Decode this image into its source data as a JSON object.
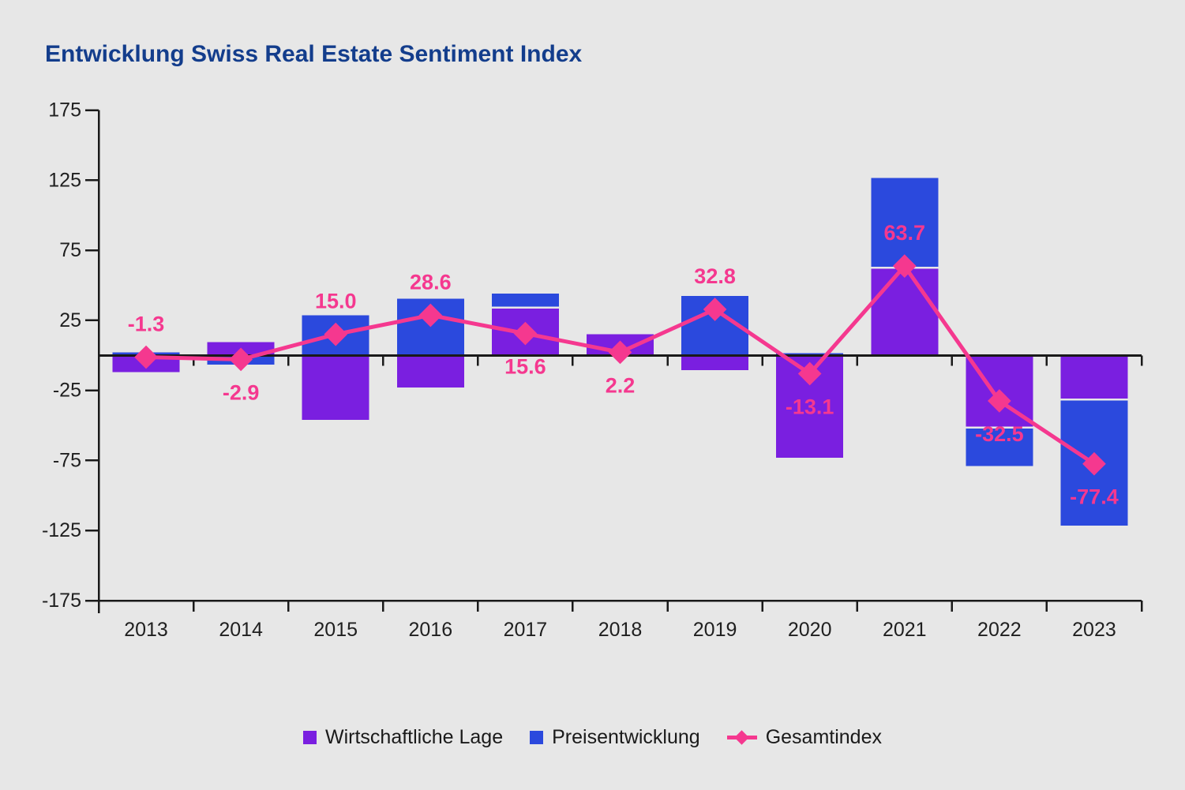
{
  "title": "Entwicklung Swiss Real Estate Sentiment Index",
  "colors": {
    "background": "#e7e7e7",
    "title": "#133d8c",
    "purple": "#7a1fe0",
    "blue": "#2b49dd",
    "pink": "#f5388f",
    "axis": "#1a1a1a",
    "tick_text": "#1f1f1f",
    "legend_text": "#1a1a1a",
    "separator": "#e7e7e7"
  },
  "chart_data": {
    "type": "bar+line",
    "title": "Entwicklung Swiss Real Estate Sentiment Index",
    "categories": [
      "2013",
      "2014",
      "2015",
      "2016",
      "2017",
      "2018",
      "2019",
      "2020",
      "2021",
      "2022",
      "2023"
    ],
    "series": [
      {
        "name": "Wirtschaftliche Lage",
        "type": "bar",
        "color_key": "purple",
        "values": [
          -12,
          9.5,
          -46,
          -23,
          34,
          15,
          -10.5,
          -73,
          62.5,
          -51.5,
          -31.5
        ]
      },
      {
        "name": "Preisentwicklung",
        "type": "bar",
        "color_key": "blue",
        "values": [
          2,
          -6.5,
          28.5,
          40.5,
          10,
          -1,
          42.5,
          1.5,
          64,
          -27.5,
          -90
        ]
      },
      {
        "name": "Gesamtindex",
        "type": "line",
        "color_key": "pink",
        "values": [
          -1.3,
          -2.9,
          15.0,
          28.6,
          15.6,
          2.2,
          32.8,
          -13.1,
          63.7,
          -32.5,
          -77.4
        ],
        "labels": [
          "-1.3",
          "-2.9",
          "15.0",
          "28.6",
          "15.6",
          "2.2",
          "32.8",
          "-13.1",
          "63.7",
          "-32.5",
          "-77.4"
        ],
        "label_above": [
          true,
          false,
          true,
          true,
          false,
          false,
          true,
          false,
          true,
          false,
          false
        ]
      }
    ],
    "xlabel": "",
    "ylabel": "",
    "ylim": [
      -175,
      175
    ],
    "yticks": [
      175,
      125,
      75,
      25,
      -25,
      -75,
      -125,
      -175
    ],
    "grid": false,
    "stacking": "bars stack when same sign (Wirtschaftliche Lage adjacent to zero), otherwise drawn on opposite sides of zero line",
    "legend_position": "bottom-center"
  },
  "legend": {
    "items": [
      {
        "label": "Wirtschaftliche Lage",
        "swatch": "square",
        "color_key": "purple"
      },
      {
        "label": "Preisentwicklung",
        "swatch": "square",
        "color_key": "blue"
      },
      {
        "label": "Gesamtindex",
        "swatch": "diamond-line",
        "color_key": "pink"
      }
    ]
  }
}
